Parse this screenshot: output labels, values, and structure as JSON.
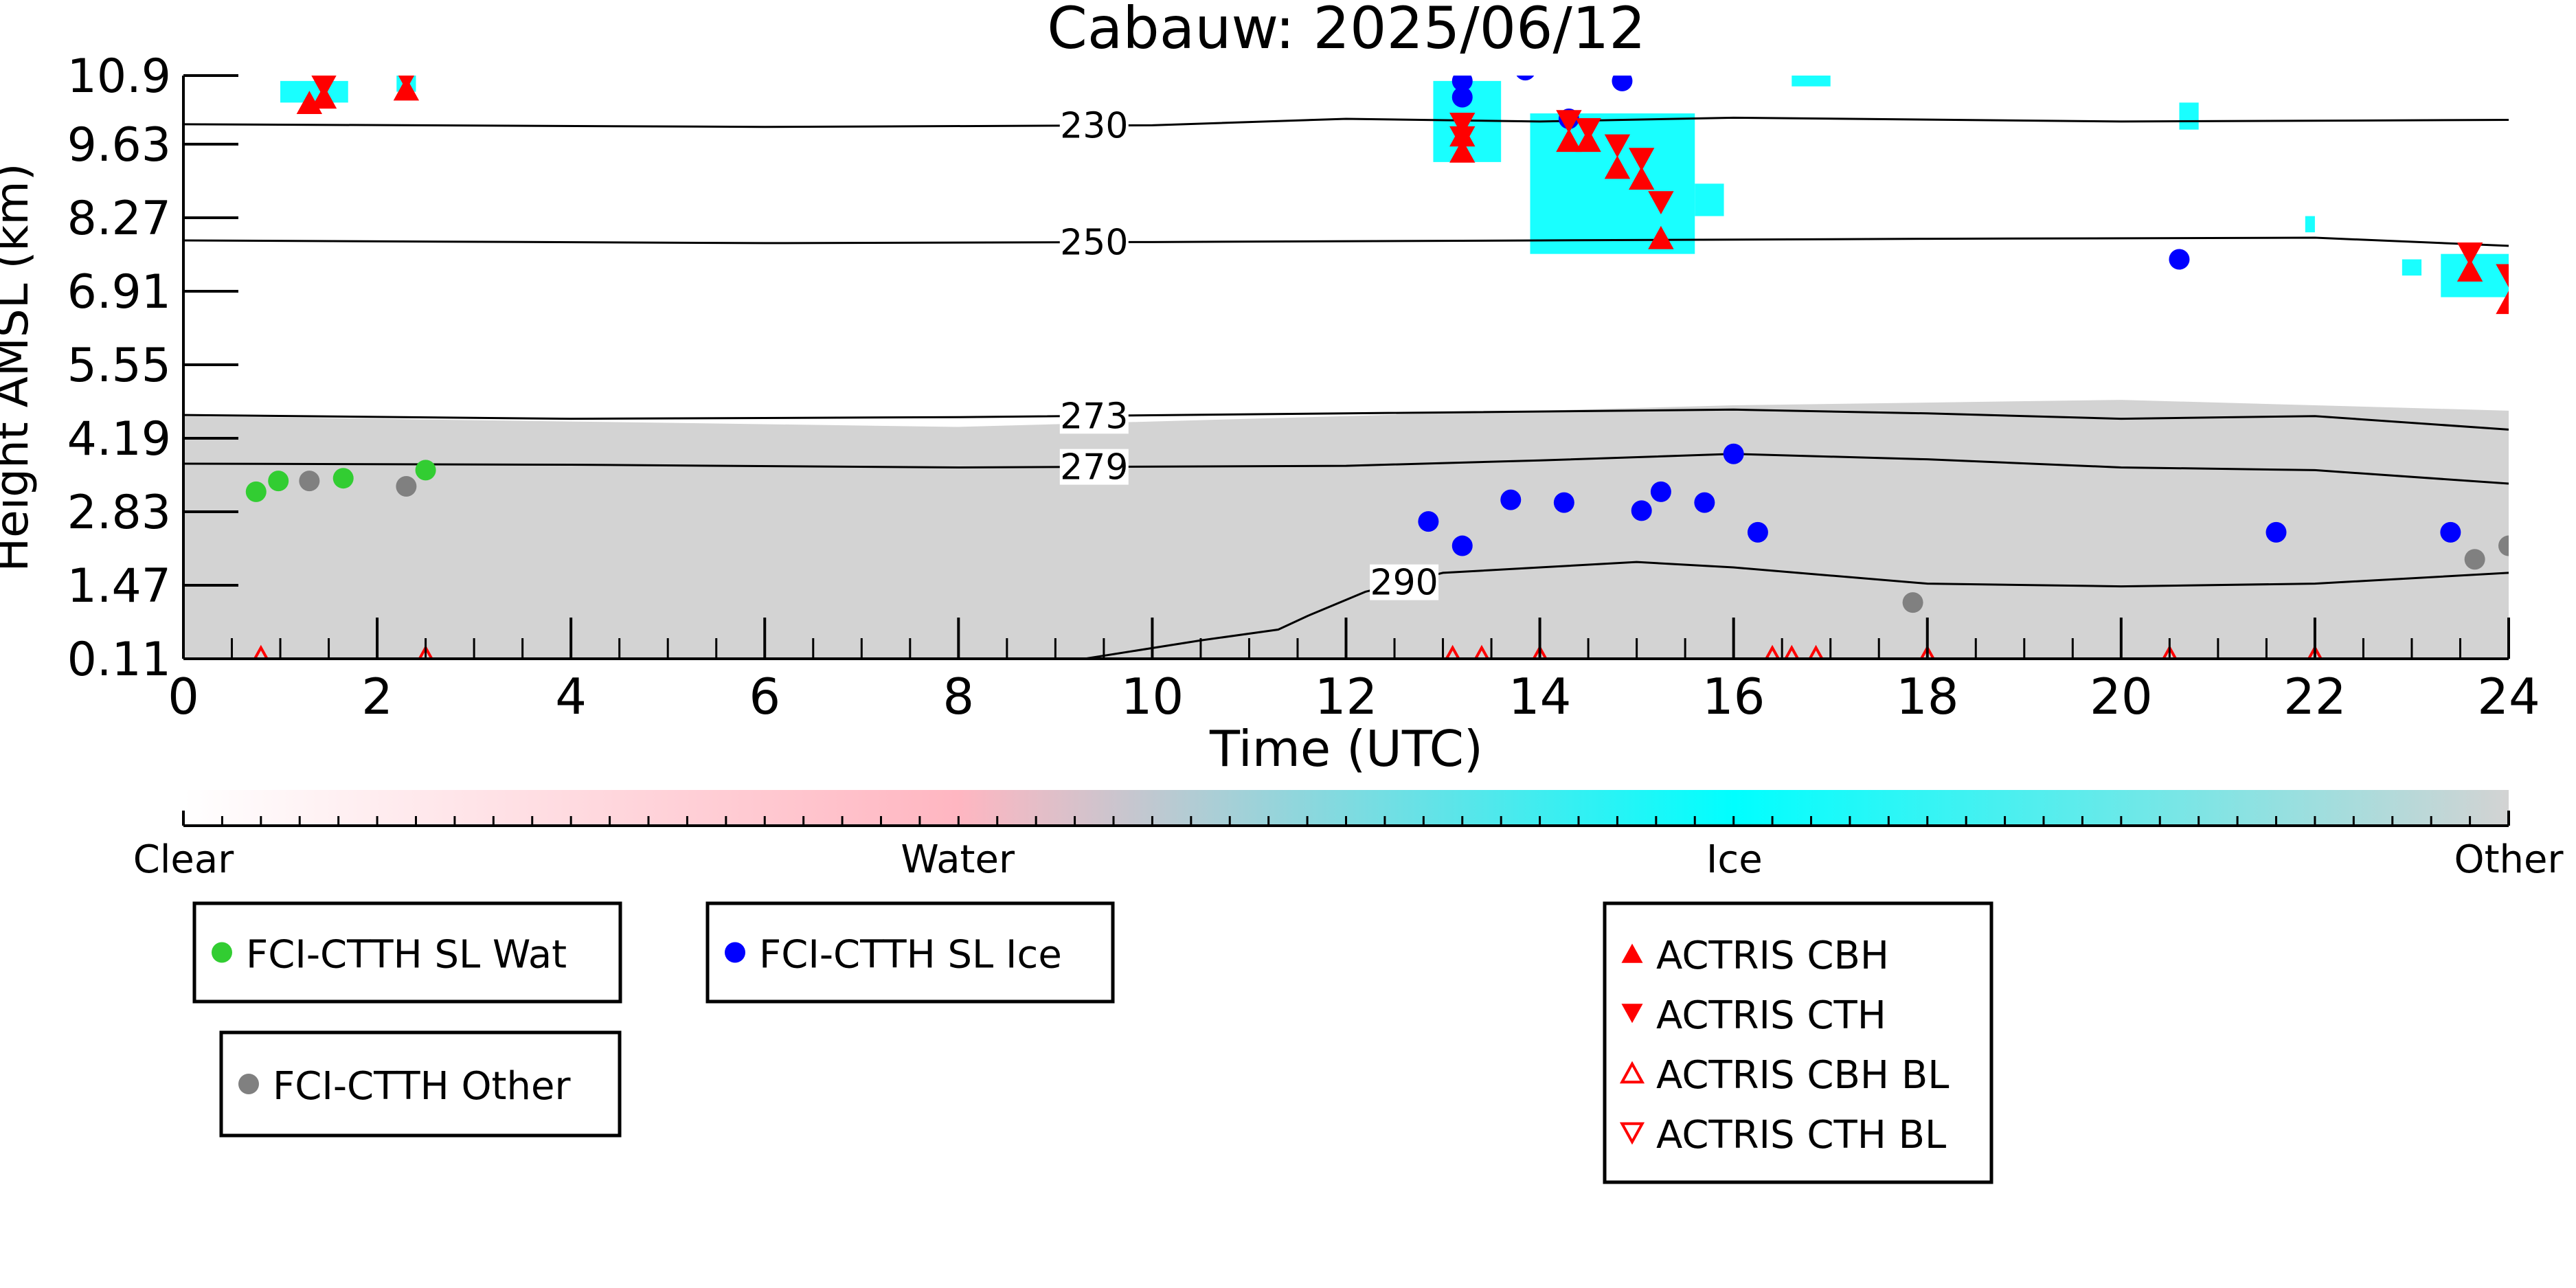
{
  "chart_data": {
    "type": "scatter",
    "title": "Cabauw: 2025/06/12",
    "xlabel": "Time (UTC)",
    "ylabel": "Height AMSL (km)",
    "xlim": [
      0,
      24
    ],
    "ylim": [
      0.11,
      10.9
    ],
    "x_ticks": [
      "0",
      "2",
      "4",
      "6",
      "8",
      "10",
      "12",
      "14",
      "16",
      "18",
      "20",
      "22",
      "24"
    ],
    "y_ticks": [
      "0.11",
      "1.47",
      "2.83",
      "4.19",
      "5.55",
      "6.91",
      "8.27",
      "9.63",
      "10.9"
    ],
    "background_classification": {
      "description_colors": {
        "clear": "#ffffff",
        "water": "#ffb6c1",
        "ice": "#00ffff",
        "other": "#d3d3d3"
      },
      "other_layer_top_km": [
        [
          0,
          4.6
        ],
        [
          4,
          4.5
        ],
        [
          8,
          4.4
        ],
        [
          12,
          4.6
        ],
        [
          16,
          4.8
        ],
        [
          20,
          4.9
        ],
        [
          24,
          4.7
        ]
      ],
      "ice_patches": [
        {
          "x": [
            1.0,
            1.7
          ],
          "y": [
            10.4,
            10.8
          ]
        },
        {
          "x": [
            2.2,
            2.4
          ],
          "y": [
            10.6,
            10.9
          ]
        },
        {
          "x": [
            12.9,
            13.6
          ],
          "y": [
            9.3,
            10.8
          ]
        },
        {
          "x": [
            13.9,
            15.6
          ],
          "y": [
            7.6,
            10.2
          ]
        },
        {
          "x": [
            15.6,
            15.9
          ],
          "y": [
            8.3,
            8.9
          ]
        },
        {
          "x": [
            16.6,
            17.0
          ],
          "y": [
            10.7,
            10.9
          ]
        },
        {
          "x": [
            20.6,
            20.8
          ],
          "y": [
            9.9,
            10.4
          ]
        },
        {
          "x": [
            21.9,
            22.0
          ],
          "y": [
            8.0,
            8.3
          ]
        },
        {
          "x": [
            22.9,
            23.1
          ],
          "y": [
            7.2,
            7.5
          ]
        },
        {
          "x": [
            23.3,
            24.0
          ],
          "y": [
            6.8,
            7.6
          ]
        }
      ]
    },
    "temperature_contours": [
      {
        "label": "230",
        "label_x": 9.4,
        "points": [
          [
            0,
            10.0
          ],
          [
            6,
            9.95
          ],
          [
            10,
            9.98
          ],
          [
            12,
            10.1
          ],
          [
            14,
            10.05
          ],
          [
            16,
            10.12
          ],
          [
            20,
            10.05
          ],
          [
            24,
            10.08
          ]
        ]
      },
      {
        "label": "250",
        "label_x": 9.4,
        "points": [
          [
            0,
            7.85
          ],
          [
            6,
            7.8
          ],
          [
            10,
            7.82
          ],
          [
            14,
            7.85
          ],
          [
            18,
            7.88
          ],
          [
            22,
            7.9
          ],
          [
            24,
            7.75
          ]
        ]
      },
      {
        "label": "273",
        "label_x": 9.4,
        "points": [
          [
            0,
            4.62
          ],
          [
            4,
            4.55
          ],
          [
            8,
            4.58
          ],
          [
            12,
            4.65
          ],
          [
            16,
            4.72
          ],
          [
            18,
            4.65
          ],
          [
            20,
            4.55
          ],
          [
            22,
            4.6
          ],
          [
            24,
            4.35
          ]
        ]
      },
      {
        "label": "279",
        "label_x": 9.4,
        "points": [
          [
            0,
            3.72
          ],
          [
            4,
            3.7
          ],
          [
            8,
            3.65
          ],
          [
            12,
            3.68
          ],
          [
            14,
            3.78
          ],
          [
            16,
            3.9
          ],
          [
            18,
            3.8
          ],
          [
            20,
            3.65
          ],
          [
            22,
            3.6
          ],
          [
            24,
            3.35
          ]
        ]
      },
      {
        "label": "290",
        "label_x": 12.6,
        "points": [
          [
            9.3,
            0.11
          ],
          [
            10.5,
            0.45
          ],
          [
            11.3,
            0.65
          ],
          [
            11.6,
            0.9
          ],
          [
            12.2,
            1.35
          ],
          [
            13.0,
            1.7
          ],
          [
            14.0,
            1.8
          ],
          [
            15.0,
            1.9
          ],
          [
            16.0,
            1.8
          ],
          [
            17.0,
            1.65
          ],
          [
            18.0,
            1.5
          ],
          [
            20.0,
            1.45
          ],
          [
            22.0,
            1.5
          ],
          [
            24.0,
            1.7
          ]
        ]
      }
    ],
    "series": [
      {
        "name": "FCI-CTTH SL Wat",
        "marker": "circle",
        "color": "#32cd32",
        "points": [
          [
            0.75,
            3.2
          ],
          [
            0.98,
            3.4
          ],
          [
            1.65,
            3.45
          ],
          [
            2.5,
            3.6
          ]
        ]
      },
      {
        "name": "FCI-CTTH SL Ice",
        "marker": "circle",
        "color": "#0000ff",
        "points": [
          [
            12.85,
            2.65
          ],
          [
            13.2,
            2.2
          ],
          [
            13.7,
            3.05
          ],
          [
            14.25,
            3.0
          ],
          [
            15.05,
            2.85
          ],
          [
            15.25,
            3.2
          ],
          [
            15.7,
            3.0
          ],
          [
            16.0,
            3.9
          ],
          [
            16.25,
            2.45
          ],
          [
            20.6,
            7.5
          ],
          [
            21.6,
            2.45
          ],
          [
            23.4,
            2.45
          ],
          [
            13.2,
            10.8
          ],
          [
            13.2,
            10.5
          ],
          [
            13.85,
            11.0
          ],
          [
            14.3,
            10.1
          ],
          [
            14.85,
            10.8
          ]
        ]
      },
      {
        "name": "FCI-CTTH Other",
        "marker": "circle",
        "color": "#808080",
        "points": [
          [
            1.3,
            3.4
          ],
          [
            2.3,
            3.3
          ],
          [
            17.85,
            1.15
          ],
          [
            23.65,
            1.95
          ],
          [
            24.0,
            2.2
          ]
        ]
      },
      {
        "name": "ACTRIS CBH",
        "marker": "triangle-up",
        "color": "#ff0000",
        "points": [
          [
            1.3,
            10.4
          ],
          [
            1.45,
            10.5
          ],
          [
            2.3,
            10.65
          ],
          [
            13.2,
            9.5
          ],
          [
            13.2,
            9.8
          ],
          [
            14.3,
            9.7
          ],
          [
            14.5,
            9.7
          ],
          [
            14.8,
            9.2
          ],
          [
            15.05,
            9.0
          ],
          [
            15.25,
            7.9
          ],
          [
            23.6,
            7.3
          ],
          [
            24.0,
            6.7
          ]
        ]
      },
      {
        "name": "ACTRIS CTH",
        "marker": "triangle-down",
        "color": "#ff0000",
        "points": [
          [
            1.45,
            10.7
          ],
          [
            2.3,
            10.85
          ],
          [
            13.2,
            10.0
          ],
          [
            13.2,
            9.75
          ],
          [
            14.3,
            10.05
          ],
          [
            14.5,
            9.9
          ],
          [
            14.8,
            9.6
          ],
          [
            15.05,
            9.35
          ],
          [
            15.25,
            8.55
          ],
          [
            23.6,
            7.6
          ],
          [
            24.0,
            7.2
          ]
        ]
      },
      {
        "name": "ACTRIS CBH BL",
        "marker": "triangle-up-open",
        "color": "#ff0000",
        "points": [
          [
            0.8,
            0.11
          ],
          [
            2.5,
            0.11
          ],
          [
            13.1,
            0.11
          ],
          [
            13.4,
            0.11
          ],
          [
            14.0,
            0.11
          ],
          [
            16.4,
            0.11
          ],
          [
            16.6,
            0.11
          ],
          [
            16.85,
            0.11
          ],
          [
            18.0,
            0.11
          ],
          [
            20.5,
            0.11
          ],
          [
            22.0,
            0.11
          ]
        ]
      },
      {
        "name": "ACTRIS CTH BL",
        "marker": "triangle-down-open",
        "color": "#ff0000",
        "points": []
      }
    ],
    "colorbar": {
      "labels": [
        "Clear",
        "Water",
        "Ice",
        "Other"
      ],
      "positions": [
        0,
        0.333,
        0.667,
        1.0
      ],
      "colors": [
        "#ffffff",
        "#ffb6c1",
        "#00ffff",
        "#d3d3d3"
      ]
    },
    "legends": [
      {
        "entries": [
          "FCI-CTTH SL Wat"
        ]
      },
      {
        "entries": [
          "FCI-CTTH SL Ice"
        ]
      },
      {
        "entries": [
          "FCI-CTTH Other"
        ]
      },
      {
        "entries": [
          "ACTRIS CBH",
          "ACTRIS CTH",
          "ACTRIS CBH BL",
          "ACTRIS CTH BL"
        ]
      }
    ]
  }
}
